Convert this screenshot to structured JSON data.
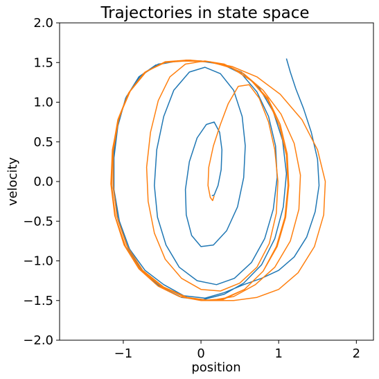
{
  "chart_data": {
    "type": "line",
    "title": "Trajectories in state space",
    "xlabel": "position",
    "ylabel": "velocity",
    "xlim": [
      -1.82,
      2.22
    ],
    "ylim": [
      -2.0,
      2.0
    ],
    "xticks": [
      -1,
      0,
      1,
      2
    ],
    "yticks": [
      -2.0,
      -1.5,
      -1.0,
      -0.5,
      0.0,
      0.5,
      1.0,
      1.5,
      2.0
    ],
    "xtick_labels": [
      "−1",
      "0",
      "1",
      "2"
    ],
    "ytick_labels": [
      "−2.0",
      "−1.5",
      "−1.0",
      "−0.5",
      "0.0",
      "0.5",
      "1.0",
      "1.5",
      "2.0"
    ],
    "grid": false,
    "series": [
      {
        "color": "#1f77b4",
        "points": [
          [
            1.1,
            1.55
          ],
          [
            1.15,
            1.38
          ],
          [
            1.22,
            1.17
          ],
          [
            1.32,
            0.92
          ],
          [
            1.42,
            0.62
          ],
          [
            1.5,
            0.28
          ],
          [
            1.52,
            -0.05
          ],
          [
            1.47,
            -0.38
          ],
          [
            1.36,
            -0.7
          ],
          [
            1.2,
            -0.95
          ],
          [
            1.0,
            -1.12
          ],
          [
            0.78,
            -1.22
          ],
          [
            0.55,
            -1.3
          ],
          [
            0.3,
            -1.4
          ],
          [
            0.05,
            -1.47
          ],
          [
            -0.22,
            -1.44
          ],
          [
            -0.48,
            -1.3
          ],
          [
            -0.72,
            -1.12
          ],
          [
            -0.92,
            -0.85
          ],
          [
            -1.05,
            -0.5
          ],
          [
            -1.12,
            -0.1
          ],
          [
            -1.12,
            0.3
          ],
          [
            -1.07,
            0.7
          ],
          [
            -0.97,
            1.05
          ],
          [
            -0.8,
            1.32
          ],
          [
            -0.58,
            1.47
          ],
          [
            -0.3,
            1.52
          ],
          [
            -0.02,
            1.52
          ],
          [
            0.25,
            1.48
          ],
          [
            0.52,
            1.38
          ],
          [
            0.75,
            1.18
          ],
          [
            0.93,
            0.88
          ],
          [
            1.05,
            0.52
          ],
          [
            1.1,
            0.1
          ],
          [
            1.06,
            -0.32
          ],
          [
            0.95,
            -0.72
          ],
          [
            0.78,
            -1.05
          ],
          [
            0.55,
            -1.28
          ],
          [
            0.3,
            -1.42
          ],
          [
            0.02,
            -1.49
          ],
          [
            -0.25,
            -1.46
          ],
          [
            -0.52,
            -1.33
          ],
          [
            -0.76,
            -1.13
          ],
          [
            -0.94,
            -0.84
          ],
          [
            -1.07,
            -0.48
          ],
          [
            -1.13,
            -0.08
          ],
          [
            -1.13,
            0.33
          ],
          [
            -1.07,
            0.73
          ],
          [
            -0.96,
            1.07
          ],
          [
            -0.78,
            1.33
          ],
          [
            -0.55,
            1.48
          ],
          [
            -0.28,
            1.52
          ],
          [
            0.0,
            1.52
          ],
          [
            0.27,
            1.48
          ],
          [
            0.52,
            1.36
          ],
          [
            0.72,
            1.13
          ],
          [
            0.87,
            0.82
          ],
          [
            0.96,
            0.45
          ],
          [
            0.98,
            0.05
          ],
          [
            0.93,
            -0.35
          ],
          [
            0.82,
            -0.72
          ],
          [
            0.65,
            -1.02
          ],
          [
            0.43,
            -1.22
          ],
          [
            0.2,
            -1.3
          ],
          [
            -0.05,
            -1.25
          ],
          [
            -0.28,
            -1.08
          ],
          [
            -0.45,
            -0.8
          ],
          [
            -0.56,
            -0.45
          ],
          [
            -0.6,
            -0.05
          ],
          [
            -0.57,
            0.4
          ],
          [
            -0.48,
            0.82
          ],
          [
            -0.35,
            1.15
          ],
          [
            -0.15,
            1.38
          ],
          [
            0.05,
            1.44
          ],
          [
            0.25,
            1.36
          ],
          [
            0.42,
            1.15
          ],
          [
            0.53,
            0.82
          ],
          [
            0.57,
            0.45
          ],
          [
            0.55,
            0.05
          ],
          [
            0.47,
            -0.32
          ],
          [
            0.33,
            -0.62
          ],
          [
            0.16,
            -0.8
          ],
          [
            0.0,
            -0.82
          ],
          [
            -0.12,
            -0.68
          ],
          [
            -0.19,
            -0.42
          ],
          [
            -0.2,
            -0.1
          ],
          [
            -0.15,
            0.25
          ],
          [
            -0.05,
            0.55
          ],
          [
            0.07,
            0.72
          ],
          [
            0.17,
            0.75
          ],
          [
            0.24,
            0.62
          ],
          [
            0.27,
            0.4
          ],
          [
            0.26,
            0.15
          ],
          [
            0.22,
            -0.05
          ],
          [
            0.17,
            -0.17
          ],
          [
            0.14,
            -0.18
          ]
        ]
      },
      {
        "color": "#ff7f0e",
        "points": [
          [
            0.17,
            -0.18
          ],
          [
            0.15,
            -0.24
          ],
          [
            0.12,
            -0.2
          ],
          [
            0.09,
            -0.05
          ],
          [
            0.1,
            0.18
          ],
          [
            0.16,
            0.45
          ],
          [
            0.25,
            0.72
          ],
          [
            0.35,
            0.98
          ],
          [
            0.48,
            1.2
          ],
          [
            0.62,
            1.22
          ],
          [
            0.75,
            1.05
          ],
          [
            0.87,
            0.75
          ],
          [
            0.95,
            0.4
          ],
          [
            0.99,
            0.0
          ],
          [
            0.97,
            -0.4
          ],
          [
            0.88,
            -0.78
          ],
          [
            0.72,
            -1.08
          ],
          [
            0.5,
            -1.28
          ],
          [
            0.25,
            -1.38
          ],
          [
            0.0,
            -1.36
          ],
          [
            -0.25,
            -1.22
          ],
          [
            -0.46,
            -0.98
          ],
          [
            -0.6,
            -0.65
          ],
          [
            -0.68,
            -0.25
          ],
          [
            -0.7,
            0.18
          ],
          [
            -0.65,
            0.62
          ],
          [
            -0.55,
            1.02
          ],
          [
            -0.4,
            1.32
          ],
          [
            -0.2,
            1.48
          ],
          [
            0.05,
            1.52
          ],
          [
            0.3,
            1.48
          ],
          [
            0.55,
            1.36
          ],
          [
            0.8,
            1.15
          ],
          [
            1.03,
            0.85
          ],
          [
            1.2,
            0.48
          ],
          [
            1.28,
            0.08
          ],
          [
            1.26,
            -0.35
          ],
          [
            1.15,
            -0.75
          ],
          [
            0.95,
            -1.08
          ],
          [
            0.7,
            -1.3
          ],
          [
            0.42,
            -1.45
          ],
          [
            0.12,
            -1.5
          ],
          [
            -0.18,
            -1.46
          ],
          [
            -0.48,
            -1.33
          ],
          [
            -0.75,
            -1.12
          ],
          [
            -0.95,
            -0.82
          ],
          [
            -1.08,
            -0.45
          ],
          [
            -1.13,
            -0.05
          ],
          [
            -1.13,
            0.38
          ],
          [
            -1.06,
            0.78
          ],
          [
            -0.93,
            1.12
          ],
          [
            -0.73,
            1.37
          ],
          [
            -0.48,
            1.5
          ],
          [
            -0.2,
            1.52
          ],
          [
            0.1,
            1.51
          ],
          [
            0.4,
            1.45
          ],
          [
            0.72,
            1.32
          ],
          [
            1.02,
            1.1
          ],
          [
            1.3,
            0.78
          ],
          [
            1.5,
            0.4
          ],
          [
            1.6,
            0.0
          ],
          [
            1.58,
            -0.42
          ],
          [
            1.46,
            -0.82
          ],
          [
            1.25,
            -1.15
          ],
          [
            1.0,
            -1.36
          ],
          [
            0.72,
            -1.46
          ],
          [
            0.42,
            -1.5
          ],
          [
            0.12,
            -1.5
          ],
          [
            -0.2,
            -1.46
          ],
          [
            -0.5,
            -1.33
          ],
          [
            -0.77,
            -1.12
          ],
          [
            -0.97,
            -0.82
          ],
          [
            -1.1,
            -0.45
          ],
          [
            -1.15,
            -0.05
          ],
          [
            -1.14,
            0.38
          ],
          [
            -1.07,
            0.78
          ],
          [
            -0.93,
            1.12
          ],
          [
            -0.72,
            1.38
          ],
          [
            -0.46,
            1.51
          ],
          [
            -0.18,
            1.53
          ],
          [
            0.1,
            1.51
          ],
          [
            0.38,
            1.44
          ],
          [
            0.64,
            1.28
          ],
          [
            0.86,
            1.05
          ],
          [
            1.02,
            0.72
          ],
          [
            1.11,
            0.35
          ],
          [
            1.13,
            -0.05
          ],
          [
            1.09,
            -0.45
          ],
          [
            0.98,
            -0.82
          ],
          [
            0.8,
            -1.13
          ],
          [
            0.56,
            -1.36
          ],
          [
            0.28,
            -1.48
          ],
          [
            0.0,
            -1.5
          ],
          [
            -0.28,
            -1.45
          ],
          [
            -0.55,
            -1.32
          ],
          [
            -0.8,
            -1.1
          ],
          [
            -0.99,
            -0.8
          ],
          [
            -1.11,
            -0.43
          ],
          [
            -1.16,
            -0.03
          ],
          [
            -1.14,
            0.4
          ],
          [
            -1.06,
            0.8
          ],
          [
            -0.91,
            1.14
          ],
          [
            -0.7,
            1.39
          ],
          [
            -0.44,
            1.51
          ],
          [
            -0.15,
            1.53
          ],
          [
            0.12,
            1.51
          ],
          [
            0.4,
            1.43
          ],
          [
            0.65,
            1.27
          ],
          [
            0.86,
            1.03
          ],
          [
            1.01,
            0.7
          ],
          [
            1.1,
            0.33
          ],
          [
            1.12,
            -0.05
          ],
          [
            1.08,
            -0.45
          ],
          [
            0.97,
            -0.82
          ],
          [
            0.8,
            -1.13
          ],
          [
            0.56,
            -1.36
          ],
          [
            0.28,
            -1.49
          ],
          [
            0.0,
            -1.5
          ]
        ]
      }
    ]
  }
}
